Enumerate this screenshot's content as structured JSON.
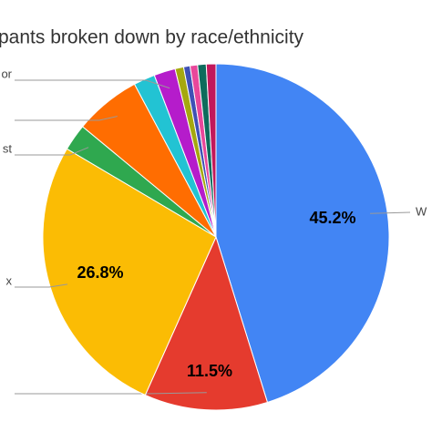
{
  "chart_data": {
    "type": "pie",
    "title": "pants broken down by race/ethnicity",
    "categories": [
      "W",
      null,
      "x",
      "st",
      null,
      null,
      "or",
      null,
      null,
      null,
      null,
      null
    ],
    "values": [
      45.2,
      11.5,
      26.8,
      2.5,
      6.2,
      2.0,
      2.0,
      0.8,
      0.6,
      0.7,
      0.8,
      0.9
    ],
    "value_labels": [
      "45.2%",
      "11.5%",
      "26.8%",
      null,
      null,
      null,
      null,
      null,
      null,
      null,
      null,
      null
    ],
    "colors": [
      "#4285f4",
      "#e53b2e",
      "#fbbc04",
      "#2fa84f",
      "#ff6d01",
      "#22c3d3",
      "#b51ccb",
      "#a5a80f",
      "#3f51b5",
      "#e8479b",
      "#0e6b5c",
      "#c2185b"
    ]
  }
}
